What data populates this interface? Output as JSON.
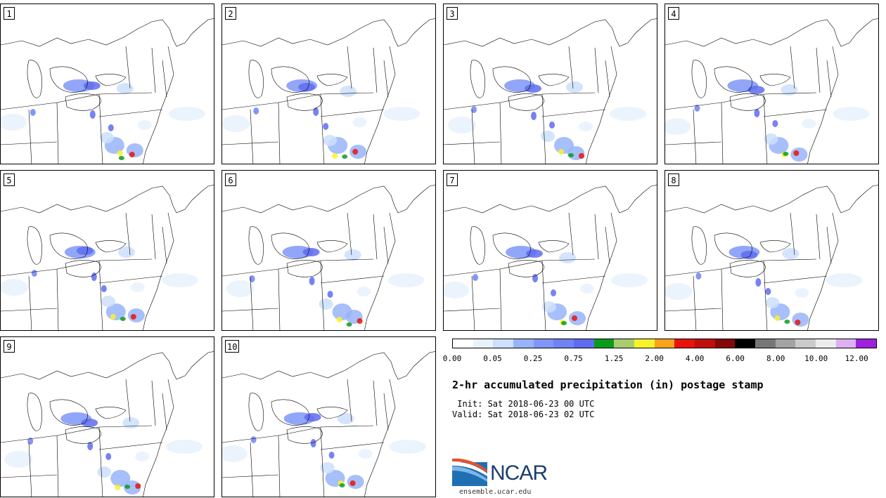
{
  "panels": [
    {
      "id": "1"
    },
    {
      "id": "2"
    },
    {
      "id": "3"
    },
    {
      "id": "4"
    },
    {
      "id": "5"
    },
    {
      "id": "6"
    },
    {
      "id": "7"
    },
    {
      "id": "8"
    },
    {
      "id": "9"
    },
    {
      "id": "10"
    }
  ],
  "colorbar": {
    "colors": [
      "#ffffff",
      "#e8f2fd",
      "#cddffb",
      "#98b4f9",
      "#7e97f7",
      "#7183f3",
      "#5f6cf0",
      "#0b9b1a",
      "#aacc6f",
      "#f8f22b",
      "#f9a31d",
      "#e7140c",
      "#bf0f0a",
      "#850808",
      "#000000",
      "#777777",
      "#a3a3a3",
      "#cacaca",
      "#ececec",
      "#ddb0f2",
      "#9e21de"
    ],
    "labels": [
      "0.00",
      "0.05",
      "0.25",
      "0.75",
      "1.25",
      "2.00",
      "4.00",
      "6.00",
      "8.00",
      "10.00",
      "12.00"
    ]
  },
  "title": "2-hr accumulated precipitation (in) postage stamp",
  "init": " Init: Sat 2018-06-23 00 UTC",
  "valid": "Valid: Sat 2018-06-23 02 UTC",
  "logo": {
    "text": "NCAR",
    "url": "ensemble.ucar.edu"
  }
}
